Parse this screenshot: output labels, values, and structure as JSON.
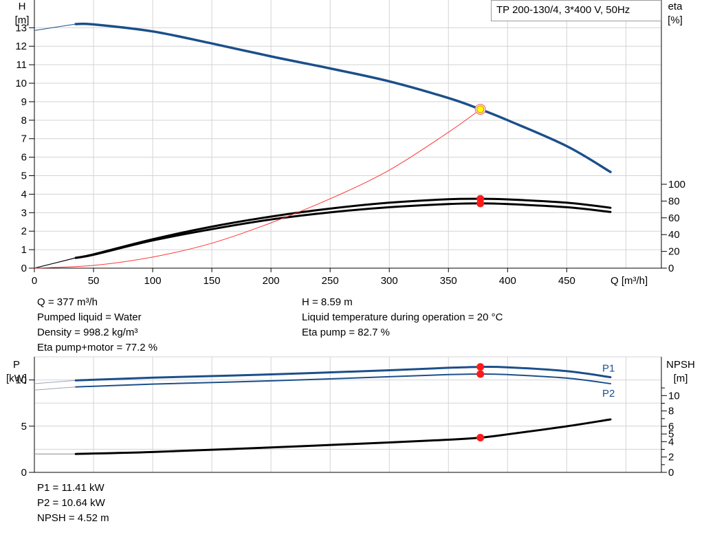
{
  "title": "TP 200-130/4, 3*400 V, 50Hz",
  "colors": {
    "head": "#1b4f8a",
    "power": "#1b4f8a",
    "eta": "#000000",
    "npsh": "#000000",
    "system": "#ff3333",
    "grid": "#d3d3d3",
    "op_point": "#ff1a1a",
    "op_point_highlight": "#ffff00"
  },
  "top_info": {
    "left": [
      "Q = 377 m³/h",
      "Pumped liquid = Water",
      "Density = 998.2 kg/m³",
      "Eta pump+motor = 77.2 %"
    ],
    "right": [
      "H = 8.59 m",
      "Liquid temperature during operation = 20 °C",
      "Eta pump = 82.7 %"
    ]
  },
  "bottom_info": [
    "P1 = 11.41 kW",
    "P2 = 10.64 kW",
    "NPSH = 4.52 m"
  ],
  "chart_data": [
    {
      "type": "line",
      "name": "head-efficiency",
      "title": "TP 200-130/4, 3*400 V, 50Hz",
      "xlabel": "Q [m³/h]",
      "ylabel": [
        "H",
        "[m]"
      ],
      "y2label": [
        "eta",
        "[%]"
      ],
      "xlim": [
        0,
        530
      ],
      "ylim": [
        0,
        14.5
      ],
      "y2lim": [
        0,
        100
      ],
      "x_ticks": [
        0,
        50,
        100,
        150,
        200,
        250,
        300,
        350,
        400,
        450
      ],
      "y_ticks": [
        0,
        1,
        2,
        3,
        4,
        5,
        6,
        7,
        8,
        9,
        10,
        11,
        12,
        13
      ],
      "y2_ticks": [
        0,
        20,
        40,
        60,
        80,
        100
      ],
      "grid": true,
      "series": [
        {
          "key": "head",
          "axis": "y",
          "x": [
            0,
            35,
            50,
            100,
            150,
            200,
            250,
            300,
            350,
            377,
            400,
            450,
            487
          ],
          "y": [
            12.85,
            13.2,
            13.18,
            12.8,
            12.15,
            11.45,
            10.8,
            10.1,
            9.2,
            8.59,
            8.0,
            6.6,
            5.2
          ],
          "leadin_until": 35
        },
        {
          "key": "eta_pump",
          "axis": "y2",
          "x": [
            0,
            35,
            50,
            100,
            150,
            200,
            250,
            300,
            350,
            377,
            400,
            450,
            487
          ],
          "y": [
            0,
            12.4,
            16.5,
            34.5,
            49.5,
            61.5,
            71.0,
            78.0,
            82.2,
            82.7,
            82.0,
            78.0,
            72.0
          ],
          "leadin_until": 35
        },
        {
          "key": "eta_total",
          "axis": "y2",
          "x": [
            0,
            35,
            50,
            100,
            150,
            200,
            250,
            300,
            350,
            377,
            400,
            450,
            487
          ],
          "y": [
            0,
            12.2,
            16.0,
            33.0,
            46.5,
            58.0,
            66.5,
            72.6,
            76.4,
            77.2,
            76.4,
            72.6,
            67.0
          ],
          "leadin_until": 35
        },
        {
          "key": "system",
          "axis": "y",
          "x": [
            0,
            50,
            100,
            150,
            200,
            250,
            300,
            350,
            377
          ],
          "y": [
            0,
            0.15,
            0.6,
            1.35,
            2.45,
            3.75,
            5.3,
            7.35,
            8.59
          ]
        }
      ],
      "points": [
        {
          "axis": "y",
          "x": 377,
          "y": 8.59,
          "style": "highlight"
        },
        {
          "axis": "y2",
          "x": 377,
          "y": 82.7,
          "style": "red"
        },
        {
          "axis": "y2",
          "x": 377,
          "y": 77.2,
          "style": "red"
        }
      ]
    },
    {
      "type": "line",
      "name": "power-npsh",
      "ylabel": [
        "P",
        "[kW]"
      ],
      "y2label": [
        "NPSH",
        "[m]"
      ],
      "xlim": [
        0,
        530
      ],
      "ylim": [
        0,
        12.5
      ],
      "y2lim": [
        0,
        12
      ],
      "y_ticks": [
        0,
        5,
        10
      ],
      "y2_ticks": [
        0,
        2,
        4,
        5,
        6,
        8,
        10
      ],
      "y2_minor_ticks": [
        1,
        3,
        7,
        9,
        11
      ],
      "grid": true,
      "series": [
        {
          "key": "P1",
          "name": "P1",
          "axis": "y",
          "x": [
            0,
            35,
            100,
            200,
            300,
            350,
            377,
            400,
            450,
            487
          ],
          "y": [
            9.6,
            9.95,
            10.25,
            10.6,
            11.05,
            11.32,
            11.41,
            11.37,
            10.95,
            10.3
          ],
          "leadin_until": 35
        },
        {
          "key": "P2",
          "name": "P2",
          "axis": "y",
          "x": [
            0,
            35,
            100,
            200,
            300,
            350,
            377,
            400,
            450,
            487
          ],
          "y": [
            8.9,
            9.25,
            9.55,
            9.9,
            10.35,
            10.58,
            10.64,
            10.58,
            10.2,
            9.6
          ],
          "leadin_until": 35
        },
        {
          "key": "NPSH",
          "axis": "y2",
          "x": [
            0,
            35,
            100,
            200,
            300,
            350,
            377,
            400,
            450,
            487
          ],
          "y": [
            2.4,
            2.4,
            2.65,
            3.25,
            3.9,
            4.25,
            4.52,
            4.95,
            6.0,
            6.9
          ],
          "leadin_until": 35
        }
      ],
      "points": [
        {
          "axis": "y",
          "x": 377,
          "y": 11.41,
          "style": "red"
        },
        {
          "axis": "y",
          "x": 377,
          "y": 10.64,
          "style": "red"
        },
        {
          "axis": "y2",
          "x": 377,
          "y": 4.52,
          "style": "red"
        }
      ]
    }
  ]
}
